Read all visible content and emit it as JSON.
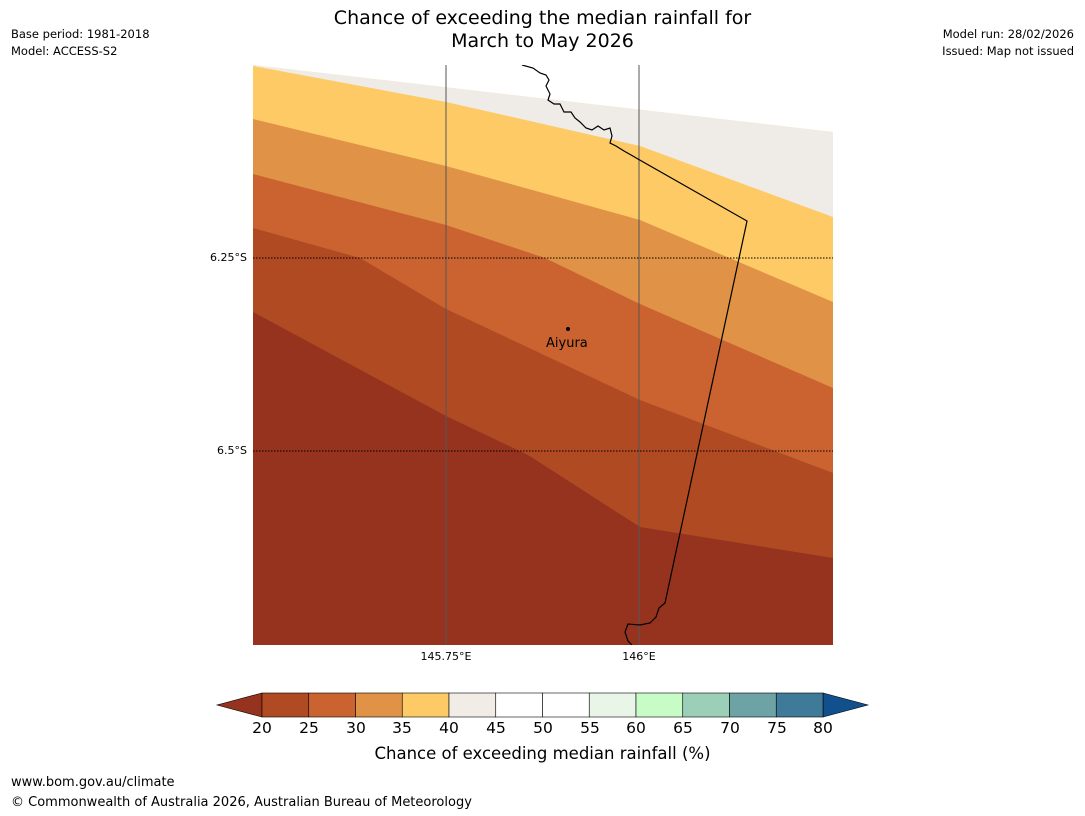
{
  "title": {
    "line1": "Chance of exceeding the median rainfall for",
    "line2": "March to May 2026"
  },
  "meta_left": {
    "base_period": "Base period: 1981-2018",
    "model": "Model: ACCESS-S2"
  },
  "meta_right": {
    "model_run": "Model run: 28/02/2026",
    "issued": "Issued: Map not issued"
  },
  "map": {
    "lat_labels": [
      "6.25°S",
      "6.5°S"
    ],
    "lon_labels": [
      "145.75°E",
      "146°E"
    ],
    "places": [
      {
        "name": "Aiyura"
      }
    ],
    "bands": [
      {
        "range": "40-45",
        "color": "#efebe6"
      },
      {
        "range": "35-40",
        "color": "#fdca66"
      },
      {
        "range": "30-35",
        "color": "#e09246"
      },
      {
        "range": "25-30",
        "color": "#ca6330"
      },
      {
        "range": "20-25",
        "color": "#af4a23"
      },
      {
        "range": "<20",
        "color": "#96331e"
      }
    ]
  },
  "colorbar": {
    "ticks": [
      "20",
      "25",
      "30",
      "35",
      "40",
      "45",
      "50",
      "55",
      "60",
      "65",
      "70",
      "75",
      "80"
    ],
    "colors": [
      "#af4a23",
      "#ca6330",
      "#e09246",
      "#fdca66",
      "#f1ece6",
      "#ffffff",
      "#ffffff",
      "#e9f5e7",
      "#c8fcc7",
      "#9ccfb7",
      "#6ea3a6",
      "#3f7a99"
    ],
    "under_color": "#96331e",
    "over_color": "#11508d",
    "label": "Chance of exceeding median rainfall (%)"
  },
  "footer": {
    "url": "www.bom.gov.au/climate",
    "copyright": "© Commonwealth of Australia 2026, Australian Bureau of Meteorology"
  }
}
